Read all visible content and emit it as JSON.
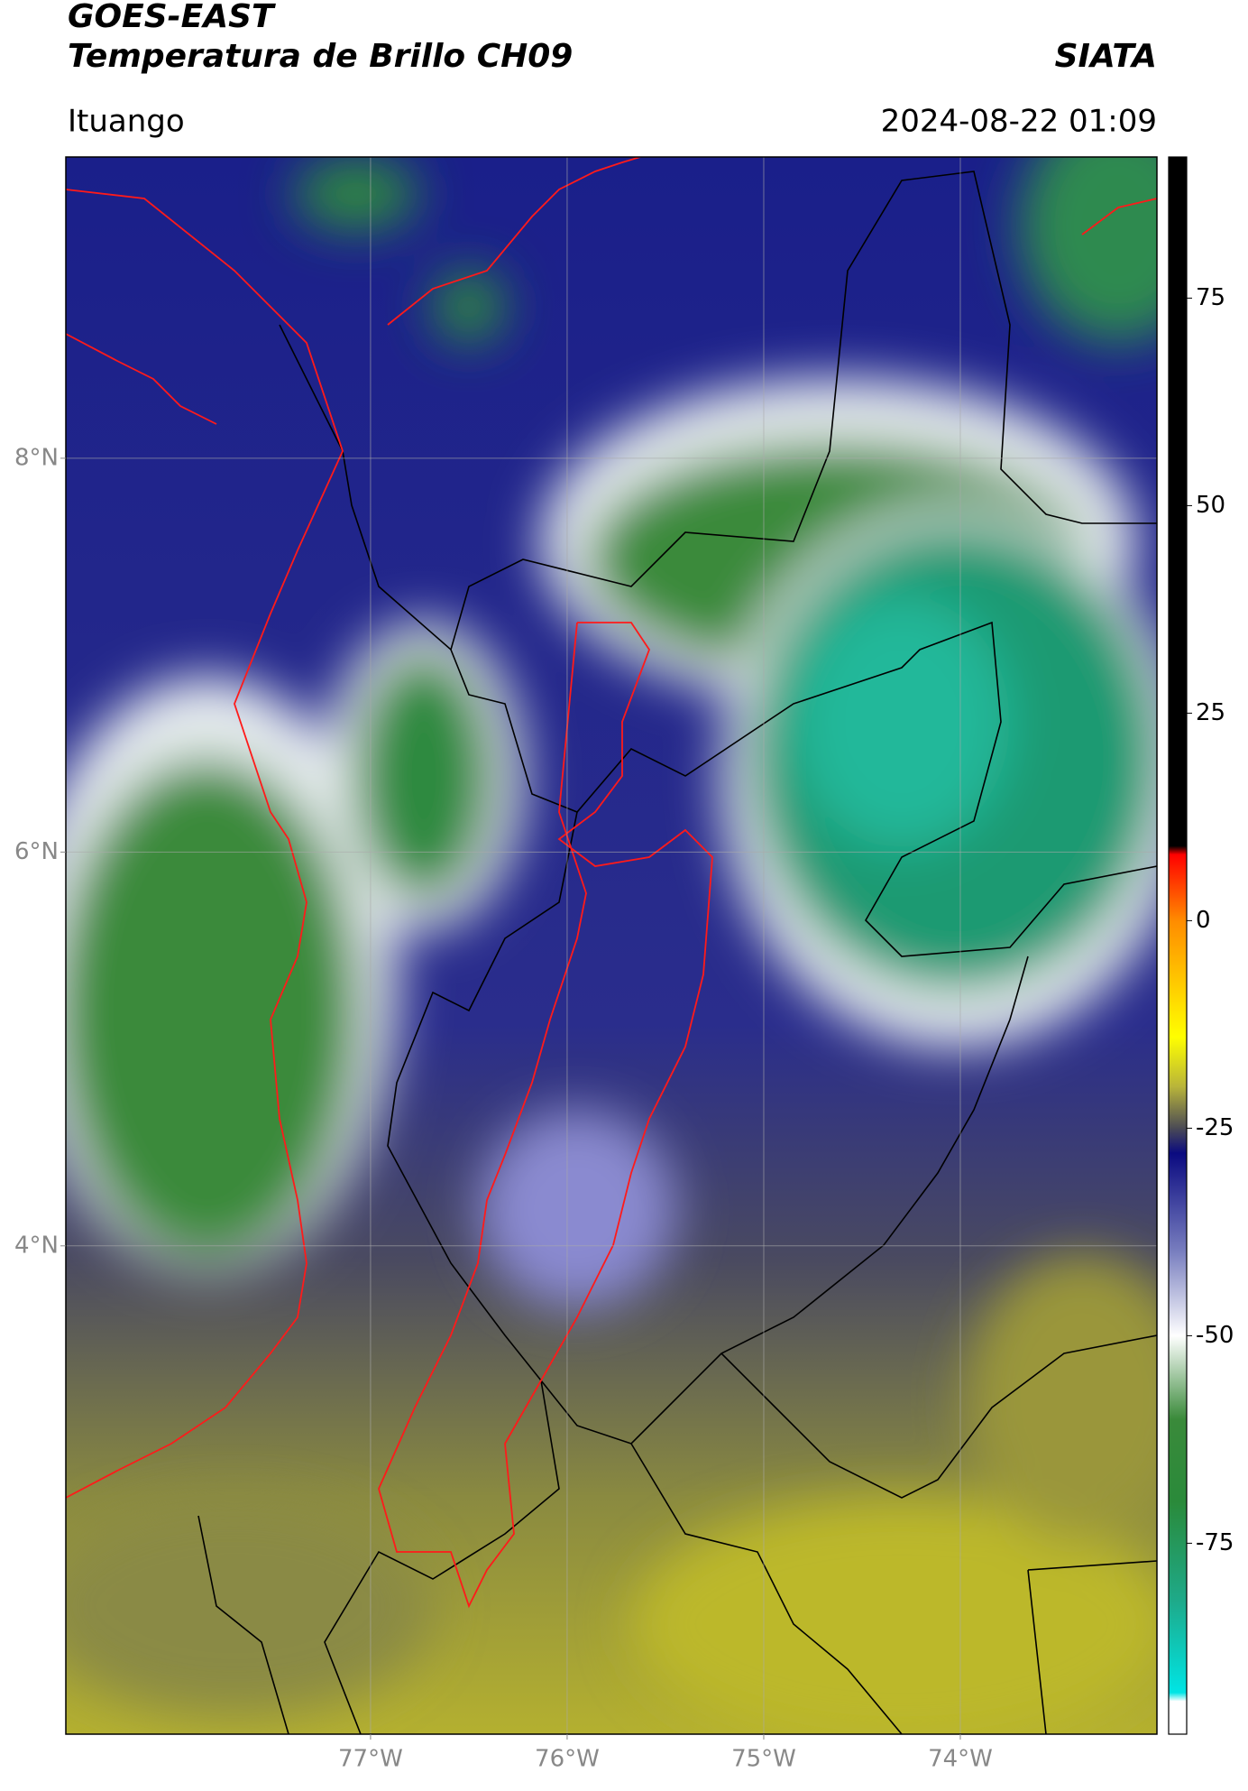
{
  "header": {
    "title": "GOES-EAST",
    "subtitle": "Temperatura de Brillo CH09",
    "agency": "SIATA",
    "location": "Ituango",
    "datetime": "2024-08-22 01:09"
  },
  "map": {
    "xlim": [
      -78.55,
      -73.0
    ],
    "ylim": [
      1.52,
      9.53
    ],
    "xticks": [
      {
        "value": -77,
        "label": "77°W"
      },
      {
        "value": -76,
        "label": "76°W"
      },
      {
        "value": -75,
        "label": "75°W"
      },
      {
        "value": -74,
        "label": "74°W"
      }
    ],
    "yticks": [
      {
        "value": 8,
        "label": "8°N"
      },
      {
        "value": 6,
        "label": "6°N"
      },
      {
        "value": 4,
        "label": "4°N"
      }
    ],
    "grid": true
  },
  "colorbar": {
    "lim": [
      -98,
      92
    ],
    "ticks": [
      75,
      50,
      25,
      0,
      -25,
      -50,
      -75
    ],
    "stops": [
      {
        "value": 92,
        "color": "#000000"
      },
      {
        "value": 9,
        "color": "#000000"
      },
      {
        "value": 8,
        "color": "#ff0000"
      },
      {
        "value": 0,
        "color": "#ff8c00"
      },
      {
        "value": -14,
        "color": "#ffff00"
      },
      {
        "value": -20,
        "color": "#b8b43a"
      },
      {
        "value": -25,
        "color": "#4a4a55"
      },
      {
        "value": -28,
        "color": "#0a0a80"
      },
      {
        "value": -40,
        "color": "#7a80c0"
      },
      {
        "value": -50,
        "color": "#ffffff"
      },
      {
        "value": -60,
        "color": "#3a8a3a"
      },
      {
        "value": -70,
        "color": "#2a8a3a"
      },
      {
        "value": -82,
        "color": "#1eaa8a"
      },
      {
        "value": -93,
        "color": "#00e5e5"
      },
      {
        "value": -94,
        "color": "#ffffff"
      },
      {
        "value": -98,
        "color": "#ffffff"
      }
    ]
  }
}
